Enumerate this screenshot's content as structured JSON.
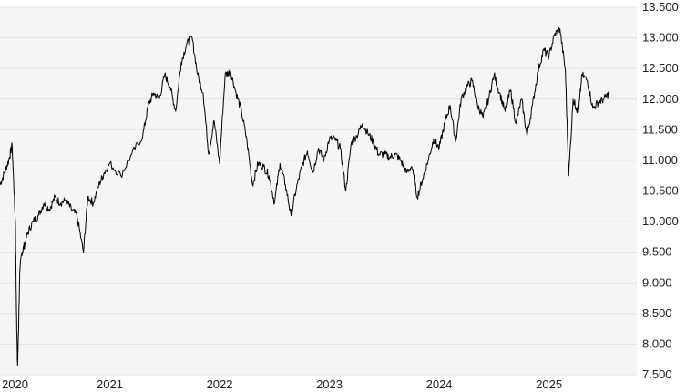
{
  "chart_data": {
    "type": "line",
    "title": "",
    "xlabel": "",
    "ylabel": "",
    "ylim": [
      7500,
      13500
    ],
    "y_ticks": [
      "7.500",
      "8.000",
      "8.500",
      "9.000",
      "9.500",
      "10.000",
      "10.500",
      "11.000",
      "11.500",
      "12.000",
      "12.500",
      "13.000",
      "13.500"
    ],
    "x_ticks": [
      "2020",
      "2021",
      "2022",
      "2023",
      "2024",
      "2025"
    ],
    "grid": "horizontal",
    "y_axis_side": "right",
    "colors": {
      "line": "#000000",
      "plot_background": "#f5f5f5",
      "grid": "#e2e2e2",
      "text": "#222222"
    },
    "series": [
      {
        "x": [
          2020.0,
          2020.04,
          2020.08,
          2020.11,
          2020.14,
          2020.15,
          2020.16,
          2020.17,
          2020.18,
          2020.2,
          2020.22,
          2020.25,
          2020.3,
          2020.35,
          2020.4,
          2020.45,
          2020.5,
          2020.55,
          2020.6,
          2020.65,
          2020.7,
          2020.76,
          2020.8,
          2020.85,
          2020.9,
          2020.95,
          2021.0,
          2021.1,
          2021.2,
          2021.3,
          2021.35,
          2021.4,
          2021.45,
          2021.5,
          2021.55,
          2021.6,
          2021.65,
          2021.7,
          2021.75,
          2021.8,
          2021.85,
          2021.9,
          2021.95,
          2022.0,
          2022.05,
          2022.1,
          2022.15,
          2022.2,
          2022.25,
          2022.3,
          2022.35,
          2022.4,
          2022.45,
          2022.5,
          2022.55,
          2022.6,
          2022.65,
          2022.7,
          2022.75,
          2022.8,
          2022.85,
          2022.9,
          2022.95,
          2023.0,
          2023.05,
          2023.1,
          2023.15,
          2023.2,
          2023.25,
          2023.3,
          2023.35,
          2023.4,
          2023.45,
          2023.5,
          2023.55,
          2023.6,
          2023.65,
          2023.7,
          2023.75,
          2023.8,
          2023.85,
          2023.9,
          2023.95,
          2024.0,
          2024.05,
          2024.1,
          2024.15,
          2024.2,
          2024.25,
          2024.3,
          2024.35,
          2024.4,
          2024.45,
          2024.5,
          2024.55,
          2024.6,
          2024.65,
          2024.7,
          2024.75,
          2024.8,
          2024.85,
          2024.9,
          2024.95,
          2025.0,
          2025.05,
          2025.1,
          2025.15,
          2025.18,
          2025.22,
          2025.25,
          2025.27,
          2025.3,
          2025.35,
          2025.4,
          2025.45,
          2025.5,
          2025.55
        ],
        "y": [
          10600,
          10800,
          11000,
          11250,
          10000,
          8500,
          7650,
          8300,
          9200,
          9500,
          9600,
          9800,
          10000,
          10100,
          10300,
          10200,
          10400,
          10300,
          10350,
          10200,
          10100,
          9500,
          10400,
          10300,
          10600,
          10800,
          10950,
          10750,
          11100,
          11400,
          11900,
          12100,
          12000,
          12400,
          12200,
          11800,
          12600,
          12900,
          13000,
          12400,
          12100,
          11100,
          11650,
          10950,
          12400,
          12450,
          12100,
          11800,
          11300,
          10600,
          10950,
          10900,
          10750,
          10300,
          10950,
          10600,
          10100,
          10550,
          10900,
          11150,
          10800,
          11200,
          11000,
          11350,
          11350,
          11200,
          10500,
          11300,
          11400,
          11600,
          11450,
          11300,
          11100,
          11100,
          11050,
          11100,
          11000,
          10800,
          10900,
          10400,
          10700,
          11000,
          11350,
          11200,
          11600,
          11900,
          11300,
          12000,
          12200,
          12300,
          11900,
          11700,
          12000,
          12400,
          12100,
          11800,
          12150,
          11600,
          12000,
          11400,
          11900,
          12450,
          12800,
          12700,
          13050,
          13150,
          12450,
          10750,
          12000,
          11850,
          11800,
          12400,
          12300,
          11850,
          11950,
          12000,
          12100
        ]
      }
    ]
  }
}
